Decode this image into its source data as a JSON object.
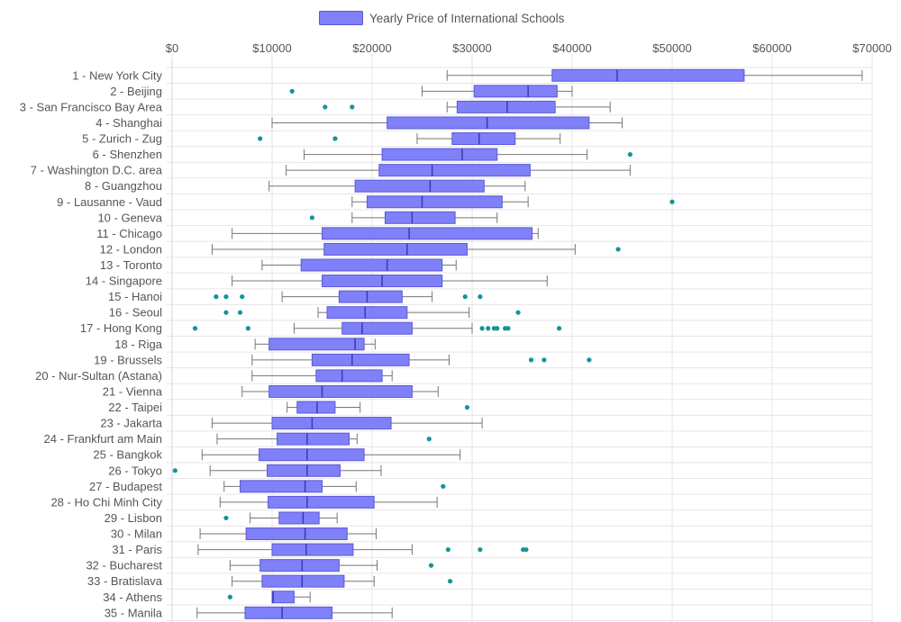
{
  "chart_data": {
    "type": "boxplot",
    "orientation": "horizontal",
    "legend": {
      "label": "Yearly Price of International Schools",
      "position": "top-center"
    },
    "x_axis": {
      "min": 0,
      "max": 70000,
      "step": 10000,
      "position": "top",
      "tick_labels": [
        "$0",
        "$10000",
        "$20000",
        "$30000",
        "$40000",
        "$50000",
        "$60000",
        "$70000"
      ]
    },
    "colors": {
      "box_fill": "#8080f8",
      "box_stroke": "#5a5ad8",
      "whisker": "#777777",
      "median": "#3a3ab8",
      "outlier": "#12959b",
      "grid": "#e6e6e6"
    },
    "series": [
      {
        "label": "1 - New York City",
        "min": 27500,
        "q1": 38000,
        "median": 44500,
        "q3": 57200,
        "max": 69000,
        "outliers": []
      },
      {
        "label": "2 - Beijing",
        "min": 25000,
        "q1": 30200,
        "median": 35600,
        "q3": 38500,
        "max": 40000,
        "outliers": [
          12000
        ]
      },
      {
        "label": "3 - San Francisco Bay Area",
        "min": 27500,
        "q1": 28500,
        "median": 33500,
        "q3": 38300,
        "max": 43800,
        "outliers": [
          15300,
          18000
        ]
      },
      {
        "label": "4 - Shanghai",
        "min": 10000,
        "q1": 21500,
        "median": 31500,
        "q3": 41700,
        "max": 45000,
        "outliers": []
      },
      {
        "label": "5 - Zurich - Zug",
        "min": 24500,
        "q1": 28000,
        "median": 30700,
        "q3": 34300,
        "max": 38800,
        "outliers": [
          8800,
          16300
        ]
      },
      {
        "label": "6 - Shenzhen",
        "min": 13200,
        "q1": 21000,
        "median": 29000,
        "q3": 32500,
        "max": 41500,
        "outliers": [
          45800
        ]
      },
      {
        "label": "7 - Washington D.C. area",
        "min": 11400,
        "q1": 20700,
        "median": 26000,
        "q3": 35800,
        "max": 45800,
        "outliers": []
      },
      {
        "label": "8 - Guangzhou",
        "min": 9700,
        "q1": 18300,
        "median": 25800,
        "q3": 31200,
        "max": 35300,
        "outliers": []
      },
      {
        "label": "9 - Lausanne - Vaud",
        "min": 18000,
        "q1": 19500,
        "median": 25000,
        "q3": 33000,
        "max": 35600,
        "outliers": [
          50000
        ]
      },
      {
        "label": "10 - Geneva",
        "min": 18000,
        "q1": 21300,
        "median": 24000,
        "q3": 28300,
        "max": 32500,
        "outliers": [
          14000
        ]
      },
      {
        "label": "11 - Chicago",
        "min": 6000,
        "q1": 15000,
        "median": 23700,
        "q3": 36000,
        "max": 36600,
        "outliers": []
      },
      {
        "label": "12 - London",
        "min": 4000,
        "q1": 15200,
        "median": 23500,
        "q3": 29500,
        "max": 40300,
        "outliers": [
          44600
        ]
      },
      {
        "label": "13 - Toronto",
        "min": 9000,
        "q1": 12900,
        "median": 21500,
        "q3": 27000,
        "max": 28400,
        "outliers": []
      },
      {
        "label": "14 - Singapore",
        "min": 6000,
        "q1": 15000,
        "median": 21000,
        "q3": 27000,
        "max": 37500,
        "outliers": []
      },
      {
        "label": "15 - Hanoi",
        "min": 11000,
        "q1": 16700,
        "median": 19500,
        "q3": 23000,
        "max": 26000,
        "outliers": [
          4400,
          5400,
          7000,
          29300,
          30800
        ]
      },
      {
        "label": "16 - Seoul",
        "min": 14600,
        "q1": 15500,
        "median": 19300,
        "q3": 23500,
        "max": 29700,
        "outliers": [
          5400,
          6800,
          34600
        ]
      },
      {
        "label": "17 - Hong Kong",
        "min": 12200,
        "q1": 17000,
        "median": 19000,
        "q3": 24000,
        "max": 30000,
        "outliers": [
          2300,
          7600,
          31000,
          31600,
          32200,
          32500,
          33300,
          33600,
          38700
        ]
      },
      {
        "label": "18 - Riga",
        "min": 8300,
        "q1": 9700,
        "median": 18300,
        "q3": 19200,
        "max": 20300,
        "outliers": []
      },
      {
        "label": "19 - Brussels",
        "min": 8000,
        "q1": 14000,
        "median": 18000,
        "q3": 23700,
        "max": 27700,
        "outliers": [
          35900,
          37200,
          41700
        ]
      },
      {
        "label": "20 - Nur-Sultan (Astana)",
        "min": 8000,
        "q1": 14400,
        "median": 17000,
        "q3": 21000,
        "max": 22000,
        "outliers": []
      },
      {
        "label": "21 - Vienna",
        "min": 7000,
        "q1": 9700,
        "median": 15000,
        "q3": 24000,
        "max": 26600,
        "outliers": []
      },
      {
        "label": "22 - Taipei",
        "min": 11500,
        "q1": 12500,
        "median": 14500,
        "q3": 16300,
        "max": 18800,
        "outliers": [
          29500
        ]
      },
      {
        "label": "23 - Jakarta",
        "min": 4000,
        "q1": 10000,
        "median": 14000,
        "q3": 21900,
        "max": 31000,
        "outliers": []
      },
      {
        "label": "24 - Frankfurt am Main",
        "min": 4500,
        "q1": 10500,
        "median": 13500,
        "q3": 17700,
        "max": 18500,
        "outliers": [
          25700
        ]
      },
      {
        "label": "25 - Bangkok",
        "min": 3000,
        "q1": 8700,
        "median": 13500,
        "q3": 19200,
        "max": 28800,
        "outliers": []
      },
      {
        "label": "26 - Tokyo",
        "min": 3800,
        "q1": 9500,
        "median": 13500,
        "q3": 16800,
        "max": 20900,
        "outliers": [
          300
        ]
      },
      {
        "label": "27 - Budapest",
        "min": 5200,
        "q1": 6800,
        "median": 13300,
        "q3": 15000,
        "max": 18400,
        "outliers": [
          27100
        ]
      },
      {
        "label": "28 - Ho Chi Minh City",
        "min": 4800,
        "q1": 9600,
        "median": 13500,
        "q3": 20200,
        "max": 26500,
        "outliers": []
      },
      {
        "label": "29 - Lisbon",
        "min": 7800,
        "q1": 10700,
        "median": 13100,
        "q3": 14700,
        "max": 16500,
        "outliers": [
          5400
        ]
      },
      {
        "label": "30 - Milan",
        "min": 2800,
        "q1": 7400,
        "median": 13300,
        "q3": 17500,
        "max": 20400,
        "outliers": []
      },
      {
        "label": "31 - Paris",
        "min": 2600,
        "q1": 10000,
        "median": 13400,
        "q3": 18100,
        "max": 24000,
        "outliers": [
          27600,
          30800,
          35100,
          35400
        ]
      },
      {
        "label": "32 - Bucharest",
        "min": 5800,
        "q1": 8800,
        "median": 13000,
        "q3": 16700,
        "max": 20500,
        "outliers": [
          25900
        ]
      },
      {
        "label": "33 - Bratislava",
        "min": 6000,
        "q1": 9000,
        "median": 13000,
        "q3": 17200,
        "max": 20200,
        "outliers": [
          27800
        ]
      },
      {
        "label": "34 - Athens",
        "min": 10000,
        "q1": 10000,
        "median": 10100,
        "q3": 12200,
        "max": 13800,
        "outliers": [
          5800
        ]
      },
      {
        "label": "35 - Manila",
        "min": 2500,
        "q1": 7300,
        "median": 11000,
        "q3": 16000,
        "max": 22000,
        "outliers": []
      }
    ]
  }
}
